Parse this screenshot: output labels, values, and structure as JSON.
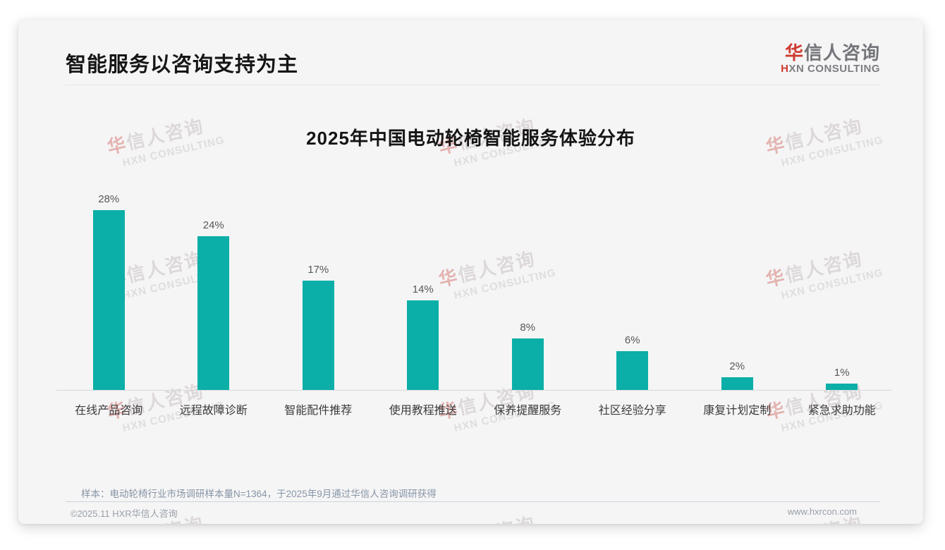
{
  "header": {
    "title": "智能服务以咨询支持为主",
    "logo": {
      "zh_accent": "华",
      "zh_rest": "信人咨询",
      "en_accent": "H",
      "en_rest": "XN CONSULTING"
    }
  },
  "chart_data": {
    "type": "bar",
    "title": "2025年中国电动轮椅智能服务体验分布",
    "categories": [
      "在线产品咨询",
      "远程故障诊断",
      "智能配件推荐",
      "使用教程推送",
      "保养提醒服务",
      "社区经验分享",
      "康复计划定制",
      "紧急求助功能"
    ],
    "values": [
      28,
      24,
      17,
      14,
      8,
      6,
      2,
      1
    ],
    "value_labels": [
      "28%",
      "24%",
      "17%",
      "14%",
      "8%",
      "6%",
      "2%",
      "1%"
    ],
    "unit": "%",
    "bar_color": "#0bafa7",
    "ylim": [
      0,
      30
    ],
    "grid": false,
    "legend": false,
    "xlabel": "",
    "ylabel": ""
  },
  "watermark": {
    "zh_accent": "华",
    "zh_rest": "信人咨询",
    "en": "HXN CONSULTING"
  },
  "footnote": "样本：电动轮椅行业市场调研样本量N=1364，于2025年9月通过华信人咨询调研获得",
  "footer": {
    "copyright": "©2025.11 HXR华信人咨询",
    "website": "www.hxrcon.com"
  },
  "colors": {
    "bar": "#0bafa7",
    "accent_red": "#ce3a30",
    "card_bg": "#f5f5f6"
  }
}
